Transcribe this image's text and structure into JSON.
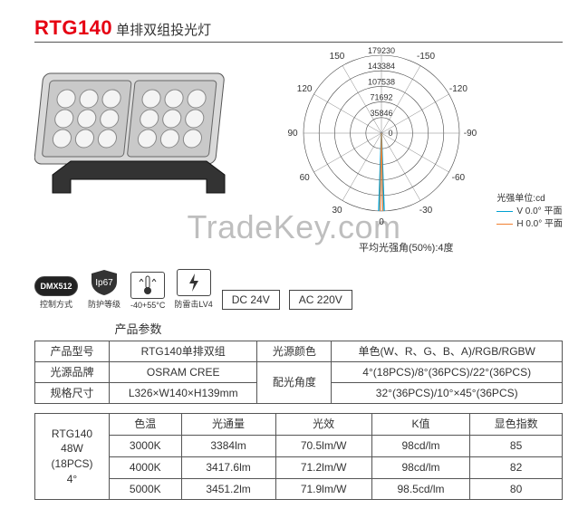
{
  "title": {
    "model": "RTG140",
    "suffix": "单排双组投光灯"
  },
  "polar": {
    "type": "polar-luminous-intensity",
    "rings": [
      35846,
      71692,
      107538,
      143384,
      179230
    ],
    "angles": [
      -150,
      -120,
      -90,
      -60,
      -30,
      0,
      30,
      60,
      90,
      120,
      150
    ],
    "unit_label": "光强单位:cd",
    "legend_v": "V  0.0° 平面",
    "legend_h": "H  0.0° 平面",
    "color_v": "#00a0d2",
    "color_h": "#f08030",
    "caption": "平均光强角(50%):4度",
    "background": "#ffffff",
    "ring_color": "#444444",
    "spoke_color": "#666666"
  },
  "badges": {
    "dmx_label": "DMX512",
    "dmx_caption": "控制方式",
    "ip_label": "Ip67",
    "ip_caption": "防护等级",
    "temp_label": "-40+55°C",
    "lightning_label": "防雷击LV4",
    "dc": "DC 24V",
    "ac": "AC 220V"
  },
  "spec": {
    "section_title": "产品参数",
    "rows": {
      "model_h": "产品型号",
      "model_v": "RTG140单排双组",
      "brand_h": "光源品牌",
      "brand_v": "OSRAM  CREE",
      "size_h": "规格尺寸",
      "size_v": "L326×W140×H139mm",
      "color_h": "光源颜色",
      "color_v": "单色(W、R、G、B、A)/RGB/RGBW",
      "beam_h": "配光角度",
      "beam_v1": "4°(18PCS)/8°(36PCS)/22°(36PCS)",
      "beam_v2": "32°(36PCS)/10°×45°(36PCS)"
    }
  },
  "perf": {
    "left_line1": "RTG140",
    "left_line2": "48W",
    "left_line3": "(18PCS)",
    "left_line4": "4°",
    "headers": [
      "色温",
      "光通量",
      "光效",
      "K值",
      "显色指数"
    ],
    "rows": [
      [
        "3000K",
        "3384lm",
        "70.5lm/W",
        "98cd/lm",
        "85"
      ],
      [
        "4000K",
        "3417.6lm",
        "71.2lm/W",
        "98cd/lm",
        "82"
      ],
      [
        "5000K",
        "3451.2lm",
        "71.9lm/W",
        "98.5cd/lm",
        "80"
      ]
    ]
  },
  "watermark": "TradeKey.com"
}
